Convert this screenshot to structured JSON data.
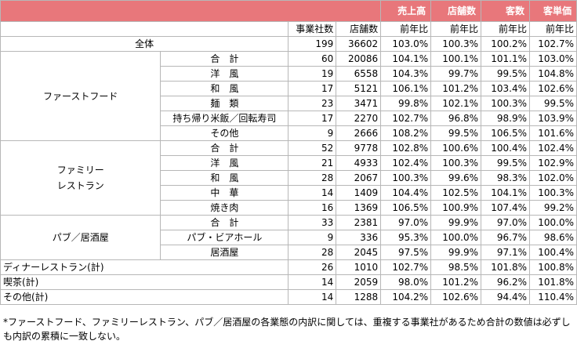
{
  "headers": {
    "metrics": [
      "売上高",
      "店舗数",
      "客数",
      "客単価"
    ],
    "subcols": [
      "事業社数",
      "店舗数",
      "前年比",
      "前年比",
      "前年比",
      "前年比"
    ]
  },
  "rows": [
    {
      "group": "全体",
      "sub": "",
      "v": [
        "199",
        "36602",
        "103.0%",
        "100.3%",
        "100.2%",
        "102.7%"
      ]
    },
    {
      "group": "ファーストフード",
      "sub": "合　計",
      "v": [
        "60",
        "20086",
        "104.1%",
        "100.1%",
        "101.1%",
        "103.0%"
      ]
    },
    {
      "group": "",
      "sub": "洋　風",
      "v": [
        "19",
        "6558",
        "104.3%",
        "99.7%",
        "99.5%",
        "104.8%"
      ]
    },
    {
      "group": "",
      "sub": "和　風",
      "v": [
        "17",
        "5121",
        "106.1%",
        "101.2%",
        "103.4%",
        "102.6%"
      ]
    },
    {
      "group": "",
      "sub": "麺　類",
      "v": [
        "23",
        "3471",
        "99.8%",
        "102.1%",
        "100.3%",
        "99.5%"
      ]
    },
    {
      "group": "",
      "sub": "持ち帰り米飯／回転寿司",
      "v": [
        "17",
        "2270",
        "102.7%",
        "96.8%",
        "98.9%",
        "103.9%"
      ]
    },
    {
      "group": "",
      "sub": "その他",
      "v": [
        "9",
        "2666",
        "108.2%",
        "99.5%",
        "106.5%",
        "101.6%"
      ]
    },
    {
      "group": "ファミリー\nレストラン",
      "sub": "合　計",
      "v": [
        "52",
        "9778",
        "102.8%",
        "100.6%",
        "100.4%",
        "102.4%"
      ]
    },
    {
      "group": "",
      "sub": "洋　風",
      "v": [
        "21",
        "4933",
        "102.4%",
        "100.3%",
        "99.5%",
        "102.9%"
      ]
    },
    {
      "group": "",
      "sub": "和　風",
      "v": [
        "28",
        "2067",
        "100.3%",
        "99.6%",
        "98.3%",
        "102.0%"
      ]
    },
    {
      "group": "",
      "sub": "中　華",
      "v": [
        "14",
        "1409",
        "104.4%",
        "102.5%",
        "104.1%",
        "100.3%"
      ]
    },
    {
      "group": "",
      "sub": "焼き肉",
      "v": [
        "16",
        "1369",
        "106.5%",
        "100.9%",
        "107.4%",
        "99.2%"
      ]
    },
    {
      "group": "パブ／居酒屋",
      "sub": "合　計",
      "v": [
        "33",
        "2381",
        "97.0%",
        "99.9%",
        "97.0%",
        "100.0%"
      ]
    },
    {
      "group": "",
      "sub": "パブ・ビアホール",
      "v": [
        "9",
        "336",
        "95.3%",
        "100.0%",
        "96.7%",
        "98.6%"
      ]
    },
    {
      "group": "",
      "sub": "居酒屋",
      "v": [
        "28",
        "2045",
        "97.5%",
        "99.9%",
        "97.1%",
        "100.4%"
      ]
    },
    {
      "group": "ディナーレストラン(計)",
      "sub": "",
      "v": [
        "26",
        "1010",
        "102.7%",
        "98.5%",
        "101.8%",
        "100.8%"
      ]
    },
    {
      "group": "喫茶(計)",
      "sub": "",
      "v": [
        "14",
        "2059",
        "98.0%",
        "101.2%",
        "96.2%",
        "101.8%"
      ]
    },
    {
      "group": "その他(計)",
      "sub": "",
      "v": [
        "14",
        "1288",
        "104.2%",
        "102.6%",
        "94.4%",
        "110.4%"
      ]
    }
  ],
  "footnote": "*ファーストフード、ファミリーレストラン、パブ／居酒屋の各業態の内訳に関しては、重複する事業社があるため合計の数値は必ずしも内訳の累積に一致しない。",
  "colors": {
    "header_bg": "#e8777b",
    "header_text": "#ffffff",
    "grid": "#b7b7b7"
  }
}
